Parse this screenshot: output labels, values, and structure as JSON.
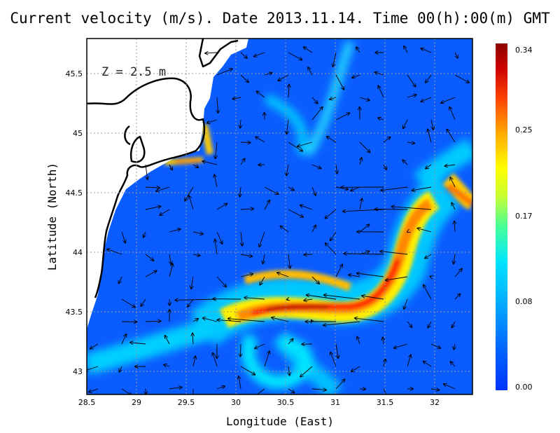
{
  "title": "Current velocity (m/s). Date 2013.11.14. Time 00(h):00(m) GMT",
  "depth_label": "Z = 2.5 m",
  "map": {
    "xlabel": "Longitude (East)",
    "ylabel": "Latitude (North)",
    "lon_range": [
      28.5,
      32.4
    ],
    "lat_range": [
      42.8,
      45.8
    ],
    "x_ticks": [
      "28.5",
      "29",
      "29.5",
      "30",
      "30.5",
      "31",
      "31.5",
      "32"
    ],
    "y_ticks": [
      "43",
      "43.5",
      "44",
      "44.5",
      "45",
      "45.5"
    ],
    "grid": true
  },
  "colorbar": {
    "min": 0.0,
    "max": 0.34,
    "tick_labels": [
      "0.34",
      "0.25",
      "0.17",
      "0.08",
      "0.00"
    ],
    "tick_values": [
      0.34,
      0.25,
      0.17,
      0.08,
      0.0
    ],
    "colormap": [
      "#0033ff",
      "#0066ff",
      "#00aaff",
      "#00e5ff",
      "#44ff99",
      "#c8ff33",
      "#ffff00",
      "#ffaa00",
      "#ff4400",
      "#cc0000",
      "#8b0000"
    ]
  },
  "colors": {
    "background_flow": "#0a5cff",
    "land": "#ffffff",
    "coastline": "#000000",
    "grid": "#9a9a9a"
  }
}
